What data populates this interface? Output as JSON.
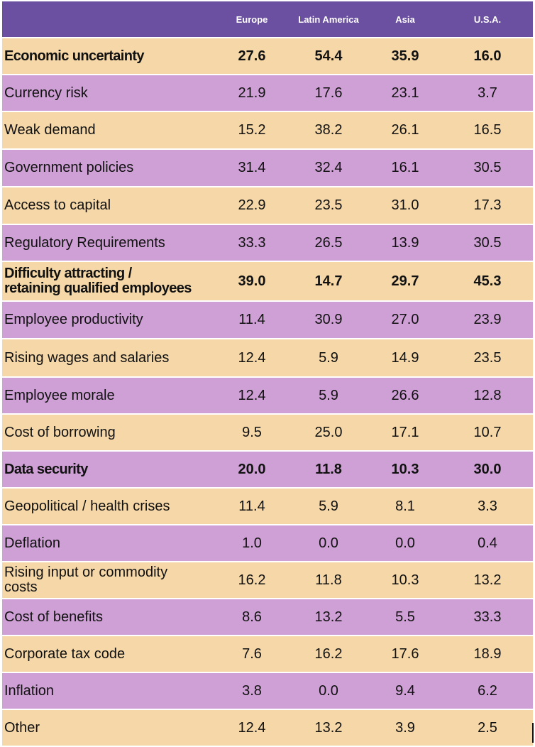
{
  "chart_data": {
    "type": "table",
    "columns": [
      "Europe",
      "Latin America",
      "Asia",
      "U.S.A."
    ],
    "colors": {
      "header": "#6b4fa0",
      "row_odd": "#f5d7a8",
      "row_even": "#cfa0d6"
    },
    "rows": [
      {
        "label": "Economic uncertainty",
        "bold": true,
        "values": [
          "27.6",
          "54.4",
          "35.9",
          "16.0"
        ]
      },
      {
        "label": "Currency risk",
        "bold": false,
        "values": [
          "21.9",
          "17.6",
          "23.1",
          "3.7"
        ]
      },
      {
        "label": "Weak demand",
        "bold": false,
        "values": [
          "15.2",
          "38.2",
          "26.1",
          "16.5"
        ]
      },
      {
        "label": "Government policies",
        "bold": false,
        "values": [
          "31.4",
          "32.4",
          "16.1",
          "30.5"
        ]
      },
      {
        "label": "Access to capital",
        "bold": false,
        "values": [
          "22.9",
          "23.5",
          "31.0",
          "17.3"
        ]
      },
      {
        "label": "Regulatory Requirements",
        "bold": false,
        "values": [
          "33.3",
          "26.5",
          "13.9",
          "30.5"
        ]
      },
      {
        "label": "Difficulty attracting /\nretaining qualified employees",
        "bold": true,
        "values": [
          "39.0",
          "14.7",
          "29.7",
          "45.3"
        ]
      },
      {
        "label": "Employee productivity",
        "bold": false,
        "values": [
          "11.4",
          "30.9",
          "27.0",
          "23.9"
        ]
      },
      {
        "label": "Rising wages and salaries",
        "bold": false,
        "values": [
          "12.4",
          "5.9",
          "14.9",
          "23.5"
        ]
      },
      {
        "label": "Employee morale",
        "bold": false,
        "values": [
          "12.4",
          "5.9",
          "26.6",
          "12.8"
        ]
      },
      {
        "label": "Cost of borrowing",
        "bold": false,
        "values": [
          "9.5",
          "25.0",
          "17.1",
          "10.7"
        ]
      },
      {
        "label": "Data security",
        "bold": true,
        "values": [
          "20.0",
          "11.8",
          "10.3",
          "30.0"
        ]
      },
      {
        "label": "Geopolitical / health crises",
        "bold": false,
        "values": [
          "11.4",
          "5.9",
          "8.1",
          "3.3"
        ]
      },
      {
        "label": "Deflation",
        "bold": false,
        "values": [
          "1.0",
          "0.0",
          "0.0",
          "0.4"
        ]
      },
      {
        "label": "Rising input or commodity\ncosts",
        "bold": false,
        "values": [
          "16.2",
          "11.8",
          "10.3",
          "13.2"
        ]
      },
      {
        "label": "Cost of benefits",
        "bold": false,
        "values": [
          "8.6",
          "13.2",
          "5.5",
          "33.3"
        ]
      },
      {
        "label": "Corporate tax code",
        "bold": false,
        "values": [
          "7.6",
          "16.2",
          "17.6",
          "18.9"
        ]
      },
      {
        "label": "Inflation",
        "bold": false,
        "values": [
          "3.8",
          "0.0",
          "9.4",
          "6.2"
        ]
      },
      {
        "label": "Other",
        "bold": false,
        "values": [
          "12.4",
          "13.2",
          "3.9",
          "2.5"
        ]
      }
    ]
  }
}
